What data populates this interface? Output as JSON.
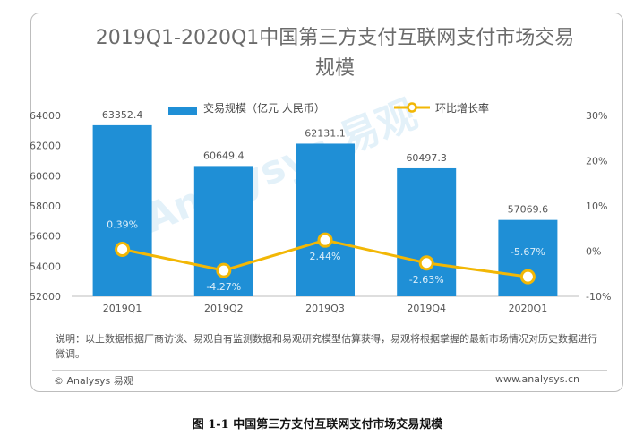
{
  "chart_data": {
    "type": "bar",
    "title": "2019Q1-2020Q1中国第三方支付互联网支付市场交易规模",
    "categories": [
      "2019Q1",
      "2019Q2",
      "2019Q3",
      "2019Q4",
      "2020Q1"
    ],
    "series": [
      {
        "name": "交易规模（亿元 人民币）",
        "type": "bar",
        "axis": "left",
        "values": [
          63352.4,
          60649.4,
          62131.1,
          60497.3,
          57069.6
        ],
        "labels": [
          "63352.4",
          "60649.4",
          "62131.1",
          "60497.3",
          "57069.6"
        ]
      },
      {
        "name": "环比增长率",
        "type": "line",
        "axis": "right",
        "values": [
          0.39,
          -4.27,
          2.44,
          -2.63,
          -5.67
        ],
        "labels": [
          "0.39%",
          "-4.27%",
          "2.44%",
          "-2.63%",
          "-5.67%"
        ]
      }
    ],
    "ylim_left": [
      52000,
      64000
    ],
    "yticks_left": [
      "52000",
      "54000",
      "56000",
      "58000",
      "60000",
      "62000",
      "64000"
    ],
    "ylim_right": [
      -10,
      30
    ],
    "yticks_right": [
      "-10%",
      "0%",
      "10%",
      "20%",
      "30%"
    ],
    "colors": {
      "bar": "#1f8fd6",
      "line": "#f2b705",
      "marker_fill": "#ffffff"
    },
    "legend": "top",
    "grid": false
  },
  "note": "说明：以上数据根据厂商访谈、易观自有监测数据和易观研究模型估算获得，易观将根据掌握的最新市场情况对历史数据进行微调。",
  "source": "© Analysys 易观",
  "site": "www.analysys.cn",
  "watermark": "Analysys 易观",
  "figure_caption": "图 1-1  中国第三方支付互联网支付市场交易规模"
}
